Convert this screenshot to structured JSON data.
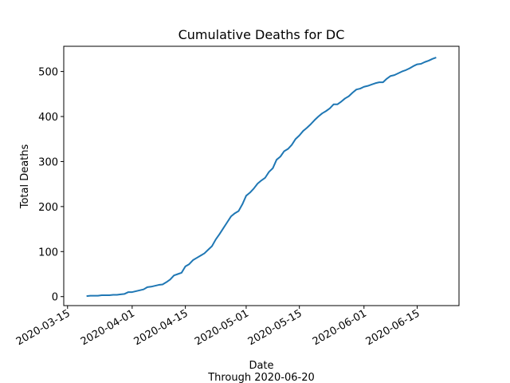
{
  "chart_data": {
    "type": "line",
    "title": "Cumulative Deaths for DC",
    "xlabel": "Date",
    "xlabel_sub": "Through 2020-06-20",
    "ylabel": "Total Deaths",
    "x_ticks": [
      "2020-03-15",
      "2020-04-01",
      "2020-04-15",
      "2020-05-01",
      "2020-05-15",
      "2020-06-01",
      "2020-06-15"
    ],
    "y_ticks": [
      0,
      100,
      200,
      300,
      400,
      500
    ],
    "xlim": [
      "2020-03-14",
      "2020-06-26"
    ],
    "ylim": [
      -20,
      556
    ],
    "grid": false,
    "line_color": "#1f77b4",
    "series": [
      {
        "x": [
          "2020-03-20",
          "2020-03-21",
          "2020-03-22",
          "2020-03-23",
          "2020-03-24",
          "2020-03-25",
          "2020-03-26",
          "2020-03-27",
          "2020-03-28",
          "2020-03-29",
          "2020-03-30",
          "2020-03-31",
          "2020-04-01",
          "2020-04-02",
          "2020-04-03",
          "2020-04-04",
          "2020-04-05",
          "2020-04-06",
          "2020-04-07",
          "2020-04-08",
          "2020-04-09",
          "2020-04-10",
          "2020-04-11",
          "2020-04-12",
          "2020-04-13",
          "2020-04-14",
          "2020-04-15",
          "2020-04-16",
          "2020-04-17",
          "2020-04-18",
          "2020-04-19",
          "2020-04-20",
          "2020-04-21",
          "2020-04-22",
          "2020-04-23",
          "2020-04-24",
          "2020-04-25",
          "2020-04-26",
          "2020-04-27",
          "2020-04-28",
          "2020-04-29",
          "2020-04-30",
          "2020-05-01",
          "2020-05-02",
          "2020-05-03",
          "2020-05-04",
          "2020-05-05",
          "2020-05-06",
          "2020-05-07",
          "2020-05-08",
          "2020-05-09",
          "2020-05-10",
          "2020-05-11",
          "2020-05-12",
          "2020-05-13",
          "2020-05-14",
          "2020-05-15",
          "2020-05-16",
          "2020-05-17",
          "2020-05-18",
          "2020-05-19",
          "2020-05-20",
          "2020-05-21",
          "2020-05-22",
          "2020-05-23",
          "2020-05-24",
          "2020-05-25",
          "2020-05-26",
          "2020-05-27",
          "2020-05-28",
          "2020-05-29",
          "2020-05-30",
          "2020-05-31",
          "2020-06-01",
          "2020-06-02",
          "2020-06-03",
          "2020-06-04",
          "2020-06-05",
          "2020-06-06",
          "2020-06-07",
          "2020-06-08",
          "2020-06-09",
          "2020-06-10",
          "2020-06-11",
          "2020-06-12",
          "2020-06-13",
          "2020-06-14",
          "2020-06-15",
          "2020-06-16",
          "2020-06-17",
          "2020-06-18",
          "2020-06-19",
          "2020-06-20"
        ],
        "y": [
          1,
          2,
          2,
          2,
          3,
          3,
          3,
          4,
          4,
          5,
          6,
          10,
          10,
          12,
          14,
          16,
          21,
          22,
          24,
          26,
          27,
          32,
          38,
          47,
          50,
          53,
          67,
          72,
          81,
          86,
          91,
          96,
          104,
          112,
          127,
          139,
          152,
          165,
          178,
          185,
          190,
          205,
          224,
          231,
          240,
          251,
          258,
          264,
          277,
          285,
          304,
          311,
          323,
          328,
          337,
          350,
          358,
          368,
          375,
          383,
          392,
          400,
          407,
          412,
          418,
          427,
          427,
          433,
          440,
          445,
          453,
          460,
          462,
          466,
          468,
          471,
          474,
          476,
          476,
          484,
          490,
          492,
          496,
          500,
          503,
          507,
          512,
          516,
          517,
          521,
          524,
          528,
          531
        ]
      }
    ]
  }
}
